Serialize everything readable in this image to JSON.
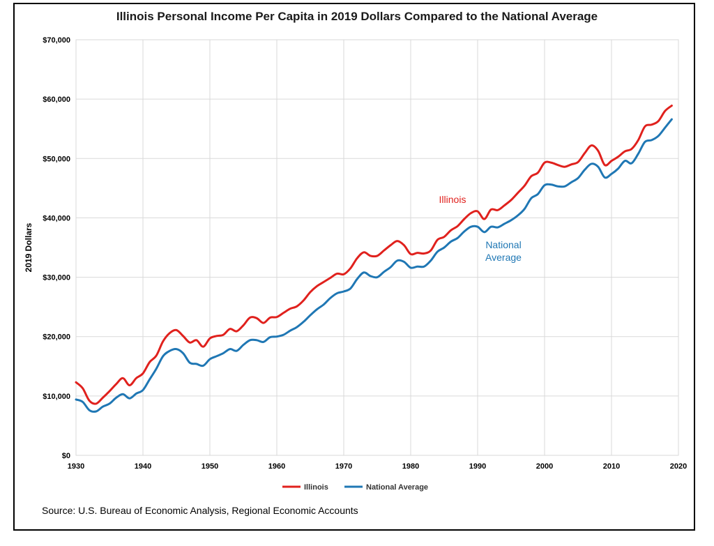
{
  "chart_data": {
    "type": "line",
    "title": "Illinois Personal Income Per Capita in 2019 Dollars Compared to the National Average",
    "ylabel": "2019 Dollars",
    "xlabel": "",
    "xlim": [
      1930,
      2020
    ],
    "ylim": [
      0,
      70000
    ],
    "x_ticks": [
      "1930",
      "1940",
      "1950",
      "1960",
      "1970",
      "1980",
      "1990",
      "2000",
      "2010",
      "2020"
    ],
    "y_ticks": [
      "$0",
      "$10,000",
      "$20,000",
      "$30,000",
      "$40,000",
      "$50,000",
      "$60,000",
      "$70,000"
    ],
    "grid": true,
    "legend_position": "bottom",
    "x": [
      1930,
      1931,
      1932,
      1933,
      1934,
      1935,
      1936,
      1937,
      1938,
      1939,
      1940,
      1941,
      1942,
      1943,
      1944,
      1945,
      1946,
      1947,
      1948,
      1949,
      1950,
      1951,
      1952,
      1953,
      1954,
      1955,
      1956,
      1957,
      1958,
      1959,
      1960,
      1961,
      1962,
      1963,
      1964,
      1965,
      1966,
      1967,
      1968,
      1969,
      1970,
      1971,
      1972,
      1973,
      1974,
      1975,
      1976,
      1977,
      1978,
      1979,
      1980,
      1981,
      1982,
      1983,
      1984,
      1985,
      1986,
      1987,
      1988,
      1989,
      1990,
      1991,
      1992,
      1993,
      1994,
      1995,
      1996,
      1997,
      1998,
      1999,
      2000,
      2001,
      2002,
      2003,
      2004,
      2005,
      2006,
      2007,
      2008,
      2009,
      2010,
      2011,
      2012,
      2013,
      2014,
      2015,
      2016,
      2017,
      2018,
      2019
    ],
    "series": [
      {
        "name": "Illinois",
        "color": "#e0211d",
        "values": [
          12300,
          11300,
          9200,
          8700,
          9700,
          10800,
          12000,
          13000,
          11800,
          13000,
          13800,
          15700,
          16800,
          19200,
          20600,
          21100,
          20100,
          19000,
          19400,
          18300,
          19700,
          20100,
          20300,
          21300,
          20900,
          21900,
          23200,
          23100,
          22300,
          23200,
          23300,
          24000,
          24700,
          25100,
          26100,
          27500,
          28500,
          29200,
          29900,
          30600,
          30500,
          31500,
          33200,
          34200,
          33600,
          33600,
          34500,
          35400,
          36100,
          35400,
          33900,
          34100,
          34000,
          34500,
          36300,
          36800,
          37900,
          38600,
          39800,
          40800,
          41100,
          39800,
          41400,
          41300,
          42100,
          43000,
          44200,
          45400,
          47000,
          47600,
          49300,
          49300,
          48900,
          48600,
          49000,
          49400,
          50900,
          52200,
          51300,
          48900,
          49600,
          50300,
          51200,
          51600,
          53100,
          55400,
          55700,
          56300,
          58000,
          58900
        ]
      },
      {
        "name": "National Average",
        "color": "#1f77b4",
        "values": [
          9400,
          9000,
          7600,
          7400,
          8200,
          8700,
          9700,
          10300,
          9600,
          10400,
          11000,
          12800,
          14600,
          16700,
          17600,
          17900,
          17200,
          15600,
          15400,
          15100,
          16200,
          16700,
          17200,
          17900,
          17600,
          18600,
          19400,
          19400,
          19100,
          19900,
          20000,
          20300,
          21000,
          21600,
          22500,
          23600,
          24600,
          25400,
          26500,
          27300,
          27600,
          28100,
          29700,
          30800,
          30200,
          30000,
          30900,
          31700,
          32800,
          32600,
          31600,
          31800,
          31800,
          32800,
          34300,
          35000,
          36000,
          36600,
          37700,
          38500,
          38500,
          37600,
          38500,
          38400,
          39000,
          39600,
          40400,
          41500,
          43300,
          44000,
          45500,
          45600,
          45300,
          45300,
          46000,
          46700,
          48100,
          49100,
          48600,
          46800,
          47400,
          48300,
          49600,
          49200,
          50800,
          52800,
          53100,
          53800,
          55200,
          56600
        ]
      }
    ],
    "annotations": [
      {
        "text": "Illinois",
        "color": "#e0211d"
      },
      {
        "text": "National\nAverage",
        "color": "#1f77b4"
      }
    ]
  },
  "source_text": "Source: U.S. Bureau of Economic Analysis, Regional Economic Accounts"
}
